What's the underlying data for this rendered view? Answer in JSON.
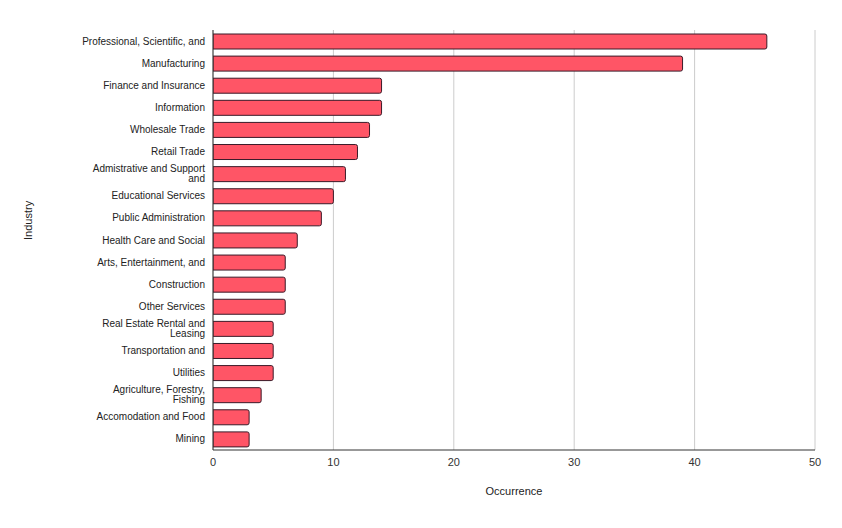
{
  "chart_data": {
    "type": "bar",
    "orientation": "horizontal",
    "x_label": "Occurrence",
    "y_label": "Industry",
    "categories": [
      "Professional, Scientific, and",
      "Manufacturing",
      "Finance and Insurance",
      "Information",
      "Wholesale Trade",
      "Retail Trade",
      "Admistrative and Support and",
      "Educational Services",
      "Public Administration",
      "Health Care and Social",
      "Arts, Entertainment, and",
      "Construction",
      "Other Services",
      "Real Estate Rental and Leasing",
      "Transportation and",
      "Utilities",
      "Agriculture, Forestry, Fishing",
      "Accomodation and Food",
      "Mining"
    ],
    "values": [
      46,
      39,
      14,
      14,
      13,
      12,
      11,
      10,
      9,
      7,
      6,
      6,
      6,
      5,
      5,
      5,
      4,
      3,
      3
    ],
    "color": "#ff5566",
    "xlim": [
      0,
      50
    ],
    "xticks": [
      0,
      10,
      20,
      30,
      40,
      50
    ],
    "grid": true
  }
}
